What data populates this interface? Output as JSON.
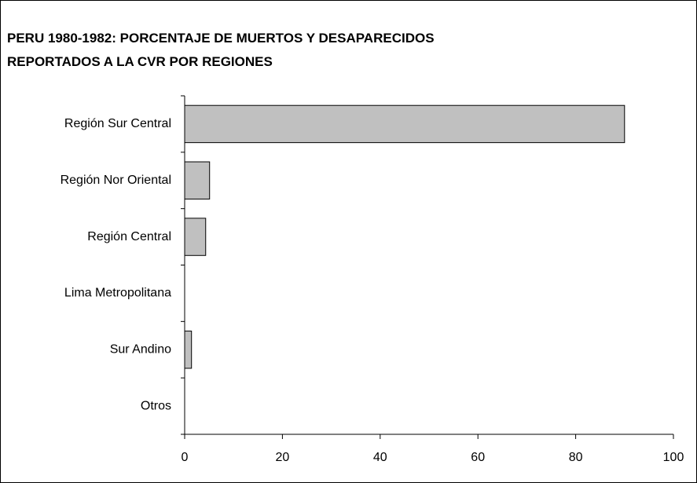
{
  "chart_data": {
    "type": "bar",
    "orientation": "horizontal",
    "title": [
      "PERU 1980-1982: PORCENTAJE DE MUERTOS Y DESAPARECIDOS",
      "REPORTADOS A LA CVR POR REGIONES"
    ],
    "categories": [
      "Región Sur Central",
      "Región Nor Oriental",
      "Región Central",
      "Lima Metropolitana",
      "Sur Andino",
      "Otros"
    ],
    "values": [
      90,
      5.1,
      4.3,
      0,
      1.4,
      0
    ],
    "color": "#c0c0c0",
    "xlim": [
      0,
      100
    ],
    "xticks": [
      0,
      20,
      40,
      60,
      80,
      100
    ],
    "grid": false
  }
}
